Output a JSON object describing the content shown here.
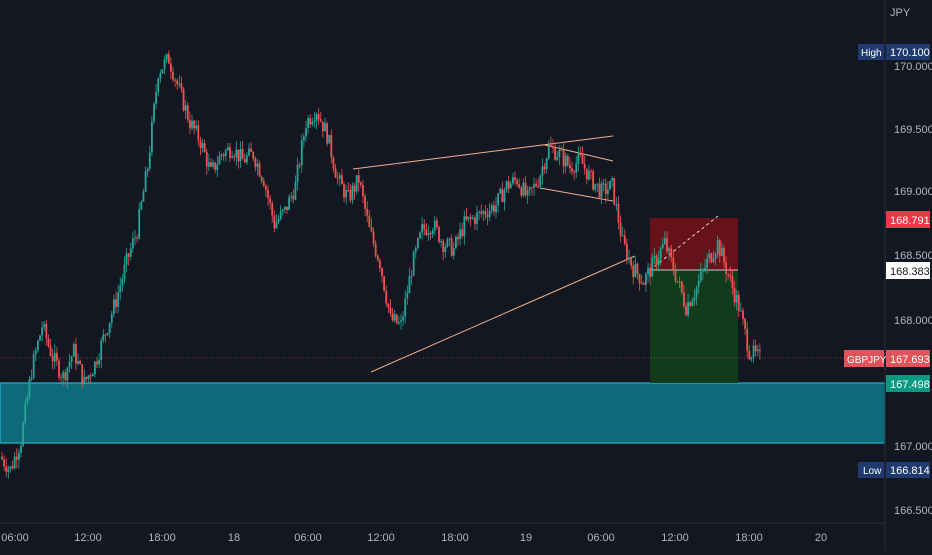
{
  "chart_data": {
    "type": "candlestick",
    "currency_label": "JPY",
    "y_ticks": [
      "170.000",
      "169.500",
      "169.000",
      "168.500",
      "168.000",
      "167.000",
      "166.500"
    ],
    "y_tick_values": [
      170.0,
      169.5,
      169.0,
      168.5,
      168.0,
      167.0,
      166.5
    ],
    "x_ticks": [
      "06:00",
      "12:00",
      "18:00",
      "18",
      "06:00",
      "12:00",
      "18:00",
      "19",
      "06:00",
      "12:00",
      "18:00",
      "20"
    ],
    "ylim": [
      166.35,
      170.45
    ],
    "grid": false,
    "price_labels": {
      "high": {
        "tag": "High",
        "value": "170.100"
      },
      "low": {
        "tag": "Low",
        "value": "166.814"
      },
      "stop_loss": {
        "value": "168.791"
      },
      "entry": {
        "value": "168.383"
      },
      "current": {
        "tag": "GBPJPY",
        "value": "167.693"
      },
      "target": {
        "value": "167.498"
      }
    },
    "zone": {
      "top": 167.498,
      "bottom": 167.02
    },
    "price_path": [
      [
        0,
        166.92
      ],
      [
        1,
        166.82
      ],
      [
        2,
        167.05
      ],
      [
        3,
        167.6
      ],
      [
        4,
        167.95
      ],
      [
        5,
        167.7
      ],
      [
        6,
        167.55
      ],
      [
        7,
        167.75
      ],
      [
        8,
        167.5
      ],
      [
        9,
        167.65
      ],
      [
        10,
        167.9
      ],
      [
        11,
        168.15
      ],
      [
        12,
        168.45
      ],
      [
        13,
        168.7
      ],
      [
        14,
        169.2
      ],
      [
        15,
        169.95
      ],
      [
        16,
        170.05
      ],
      [
        17,
        169.8
      ],
      [
        18,
        169.55
      ],
      [
        19,
        169.4
      ],
      [
        20,
        169.15
      ],
      [
        21,
        169.3
      ],
      [
        22,
        169.35
      ],
      [
        23,
        169.25
      ],
      [
        24,
        169.3
      ],
      [
        25,
        169.1
      ],
      [
        26,
        168.75
      ],
      [
        27,
        168.85
      ],
      [
        28,
        169.05
      ],
      [
        29,
        169.55
      ],
      [
        30,
        169.65
      ],
      [
        31,
        169.45
      ],
      [
        32,
        169.1
      ],
      [
        33,
        168.95
      ],
      [
        34,
        169.1
      ],
      [
        35,
        168.7
      ],
      [
        36,
        168.45
      ],
      [
        37,
        168.0
      ],
      [
        38,
        167.95
      ],
      [
        39,
        168.4
      ],
      [
        40,
        168.7
      ],
      [
        41,
        168.75
      ],
      [
        42,
        168.6
      ],
      [
        43,
        168.55
      ],
      [
        44,
        168.75
      ],
      [
        45,
        168.8
      ],
      [
        46,
        168.85
      ],
      [
        47,
        168.9
      ],
      [
        48,
        169.05
      ],
      [
        49,
        169.1
      ],
      [
        50,
        168.95
      ],
      [
        51,
        169.1
      ],
      [
        52,
        169.35
      ],
      [
        53,
        169.3
      ],
      [
        54,
        169.2
      ],
      [
        55,
        169.25
      ],
      [
        56,
        169.1
      ],
      [
        57,
        169.0
      ],
      [
        58,
        169.05
      ],
      [
        59,
        168.6
      ],
      [
        60,
        168.4
      ],
      [
        61,
        168.3
      ],
      [
        62,
        168.45
      ],
      [
        63,
        168.6
      ],
      [
        64,
        168.35
      ],
      [
        65,
        168.1
      ],
      [
        66,
        168.25
      ],
      [
        67,
        168.45
      ],
      [
        68,
        168.6
      ],
      [
        69,
        168.35
      ],
      [
        70,
        168.1
      ],
      [
        71,
        167.75
      ],
      [
        72,
        167.69
      ]
    ]
  }
}
